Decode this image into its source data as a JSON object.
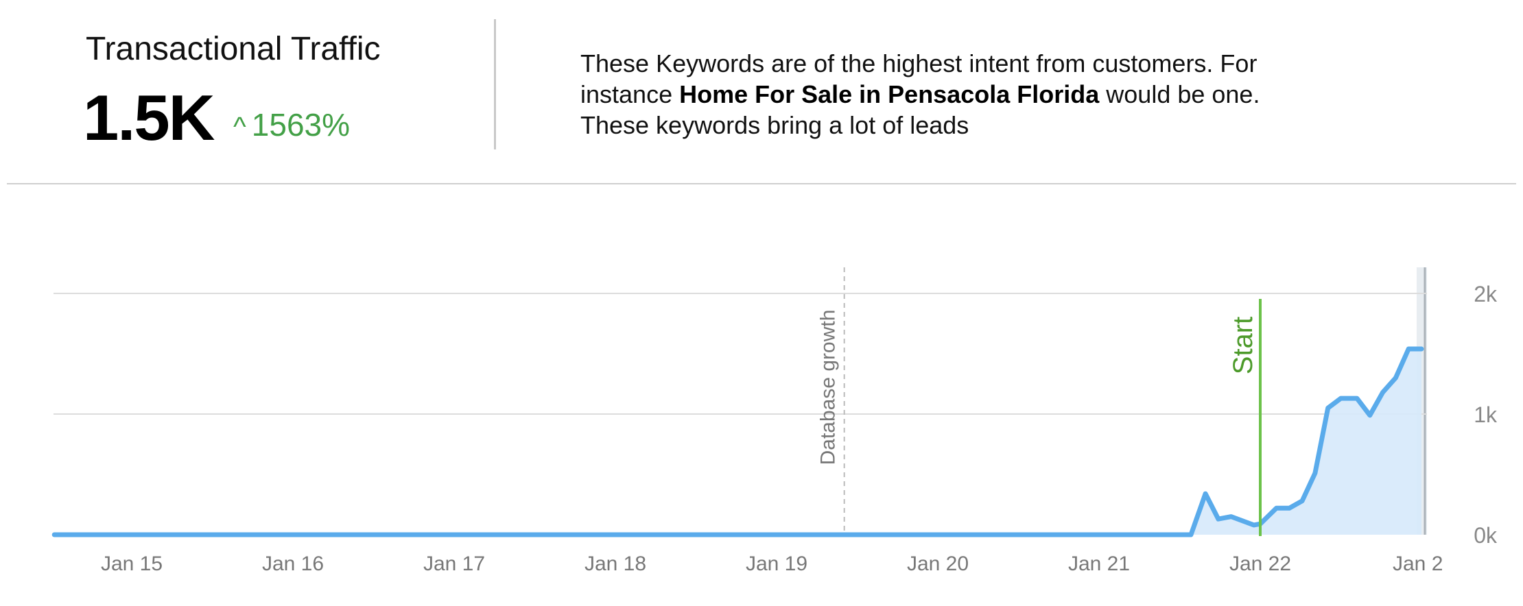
{
  "header": {
    "metric_title": "Transactional Traffic",
    "metric_value": "1.5K",
    "change_icon": "caret-up-icon",
    "change_pct": "1563%",
    "change_color": "#43a047",
    "description_pre": "These Keywords are of the highest intent from customers. For instance ",
    "description_bold": "Home For Sale in Pensacola Florida",
    "description_post": " would be one. These keywords bring a lot of leads"
  },
  "chart_data": {
    "type": "area",
    "title": "",
    "xlabel": "",
    "ylabel": "",
    "x_ticks": [
      "Jan 15",
      "Jan 16",
      "Jan 17",
      "Jan 18",
      "Jan 19",
      "Jan 20",
      "Jan 21",
      "Jan 22",
      "Jan 2"
    ],
    "x_tick_values": [
      0,
      1,
      2,
      3,
      4,
      5,
      6,
      7,
      8
    ],
    "y_ticks": [
      {
        "value": 0,
        "label": "0k"
      },
      {
        "value": 1000,
        "label": "1k"
      },
      {
        "value": 2000,
        "label": "2k"
      }
    ],
    "xlim": [
      -0.48,
      8.1
    ],
    "ylim": [
      0,
      2000
    ],
    "grid": true,
    "series": [
      {
        "line_color": "#5aabeb",
        "fill_color": "#d6e9fb",
        "points": [
          [
            -0.48,
            0
          ],
          [
            6.57,
            0
          ],
          [
            6.66,
            340
          ],
          [
            6.74,
            130
          ],
          [
            6.82,
            150
          ],
          [
            6.9,
            110
          ],
          [
            6.96,
            80
          ],
          [
            7.0,
            90
          ],
          [
            7.1,
            220
          ],
          [
            7.18,
            220
          ],
          [
            7.26,
            280
          ],
          [
            7.34,
            510
          ],
          [
            7.42,
            1050
          ],
          [
            7.5,
            1130
          ],
          [
            7.6,
            1130
          ],
          [
            7.68,
            990
          ],
          [
            7.76,
            1180
          ],
          [
            7.84,
            1300
          ],
          [
            7.92,
            1540
          ],
          [
            8.0,
            1540
          ]
        ]
      }
    ],
    "annotations": [
      {
        "label": "Database growth",
        "x": 4.42,
        "style": "dashed",
        "color": "#bbbbbb"
      },
      {
        "label": "Start",
        "x": 7.0,
        "style": "solid",
        "color": "#6cc24a",
        "text_color": "#4c9a2a"
      }
    ],
    "highlight_range": [
      7.97,
      8.1
    ]
  }
}
